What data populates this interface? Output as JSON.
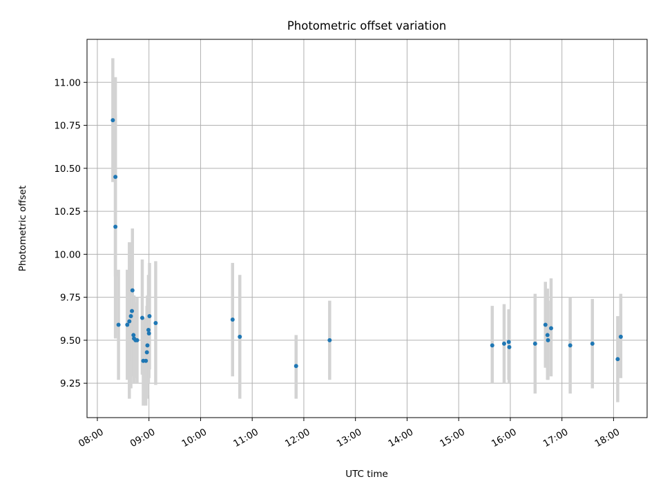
{
  "chart_data": {
    "type": "scatter",
    "title": "Photometric offset variation",
    "xlabel": "UTC time",
    "ylabel": "Photometric offset",
    "x_units": "hours UTC",
    "xlim": [
      7.8,
      18.65
    ],
    "ylim": [
      9.05,
      11.25
    ],
    "x_ticks": [
      {
        "value": 8,
        "label": "08:00"
      },
      {
        "value": 9,
        "label": "09:00"
      },
      {
        "value": 10,
        "label": "10:00"
      },
      {
        "value": 11,
        "label": "11:00"
      },
      {
        "value": 12,
        "label": "12:00"
      },
      {
        "value": 13,
        "label": "13:00"
      },
      {
        "value": 14,
        "label": "14:00"
      },
      {
        "value": 15,
        "label": "15:00"
      },
      {
        "value": 16,
        "label": "16:00"
      },
      {
        "value": 17,
        "label": "17:00"
      },
      {
        "value": 18,
        "label": "18:00"
      }
    ],
    "y_ticks": [
      {
        "value": 9.25,
        "label": "9.25"
      },
      {
        "value": 9.5,
        "label": "9.50"
      },
      {
        "value": 9.75,
        "label": "9.75"
      },
      {
        "value": 10.0,
        "label": "10.00"
      },
      {
        "value": 10.25,
        "label": "10.25"
      },
      {
        "value": 10.5,
        "label": "10.50"
      },
      {
        "value": 10.75,
        "label": "10.75"
      },
      {
        "value": 11.0,
        "label": "11.00"
      }
    ],
    "grid": true,
    "colors": {
      "points": "#1f77b4",
      "error_bars": "#d3d3d3",
      "grid": "#b0b0b0"
    },
    "series": [
      {
        "error_bars": true,
        "points": [
          {
            "x": 8.3,
            "y": 10.78,
            "lo": 10.42,
            "hi": 11.14
          },
          {
            "x": 8.35,
            "y": 10.45,
            "lo": 9.87,
            "hi": 11.03
          },
          {
            "x": 8.35,
            "y": 10.16,
            "lo": 9.51,
            "hi": 10.81
          },
          {
            "x": 8.41,
            "y": 9.59,
            "lo": 9.27,
            "hi": 9.91
          },
          {
            "x": 8.58,
            "y": 9.59,
            "lo": 9.27,
            "hi": 9.91
          },
          {
            "x": 8.62,
            "y": 9.61,
            "lo": 9.16,
            "hi": 10.07
          },
          {
            "x": 8.65,
            "y": 9.64,
            "lo": 9.22,
            "hi": 10.06
          },
          {
            "x": 8.67,
            "y": 9.67,
            "lo": 9.38,
            "hi": 9.96
          },
          {
            "x": 8.68,
            "y": 9.79,
            "lo": 9.43,
            "hi": 10.15
          },
          {
            "x": 8.7,
            "y": 9.53,
            "lo": 9.29,
            "hi": 9.76
          },
          {
            "x": 8.71,
            "y": 9.51,
            "lo": 9.25,
            "hi": 9.76
          },
          {
            "x": 8.74,
            "y": 9.5,
            "lo": 9.28,
            "hi": 9.72
          },
          {
            "x": 8.77,
            "y": 9.5,
            "lo": 9.25,
            "hi": 9.75
          },
          {
            "x": 8.87,
            "y": 9.63,
            "lo": 9.3,
            "hi": 9.97
          },
          {
            "x": 8.89,
            "y": 9.38,
            "lo": 9.12,
            "hi": 9.63
          },
          {
            "x": 8.94,
            "y": 9.38,
            "lo": 9.12,
            "hi": 9.63
          },
          {
            "x": 8.96,
            "y": 9.43,
            "lo": 9.16,
            "hi": 9.7
          },
          {
            "x": 8.97,
            "y": 9.47,
            "lo": 9.18,
            "hi": 9.76
          },
          {
            "x": 8.99,
            "y": 9.56,
            "lo": 9.25,
            "hi": 9.88
          },
          {
            "x": 9.0,
            "y": 9.54,
            "lo": 9.28,
            "hi": 9.8
          },
          {
            "x": 9.01,
            "y": 9.64,
            "lo": 9.33,
            "hi": 9.95
          },
          {
            "x": 9.13,
            "y": 9.6,
            "lo": 9.24,
            "hi": 9.96
          },
          {
            "x": 10.62,
            "y": 9.62,
            "lo": 9.29,
            "hi": 9.95
          },
          {
            "x": 10.76,
            "y": 9.52,
            "lo": 9.16,
            "hi": 9.88
          },
          {
            "x": 11.85,
            "y": 9.35,
            "lo": 9.16,
            "hi": 9.53
          },
          {
            "x": 12.5,
            "y": 9.5,
            "lo": 9.27,
            "hi": 9.73
          },
          {
            "x": 15.65,
            "y": 9.47,
            "lo": 9.25,
            "hi": 9.7
          },
          {
            "x": 15.88,
            "y": 9.48,
            "lo": 9.25,
            "hi": 9.71
          },
          {
            "x": 15.97,
            "y": 9.49,
            "lo": 9.27,
            "hi": 9.68
          },
          {
            "x": 15.98,
            "y": 9.46,
            "lo": 9.25,
            "hi": 9.68
          },
          {
            "x": 16.48,
            "y": 9.48,
            "lo": 9.19,
            "hi": 9.77
          },
          {
            "x": 16.68,
            "y": 9.59,
            "lo": 9.34,
            "hi": 9.84
          },
          {
            "x": 16.72,
            "y": 9.53,
            "lo": 9.27,
            "hi": 9.8
          },
          {
            "x": 16.73,
            "y": 9.5,
            "lo": 9.27,
            "hi": 9.73
          },
          {
            "x": 16.79,
            "y": 9.57,
            "lo": 9.29,
            "hi": 9.86
          },
          {
            "x": 17.16,
            "y": 9.47,
            "lo": 9.19,
            "hi": 9.75
          },
          {
            "x": 17.59,
            "y": 9.48,
            "lo": 9.22,
            "hi": 9.74
          },
          {
            "x": 18.08,
            "y": 9.39,
            "lo": 9.14,
            "hi": 9.64
          },
          {
            "x": 18.14,
            "y": 9.52,
            "lo": 9.28,
            "hi": 9.77
          }
        ]
      }
    ]
  }
}
